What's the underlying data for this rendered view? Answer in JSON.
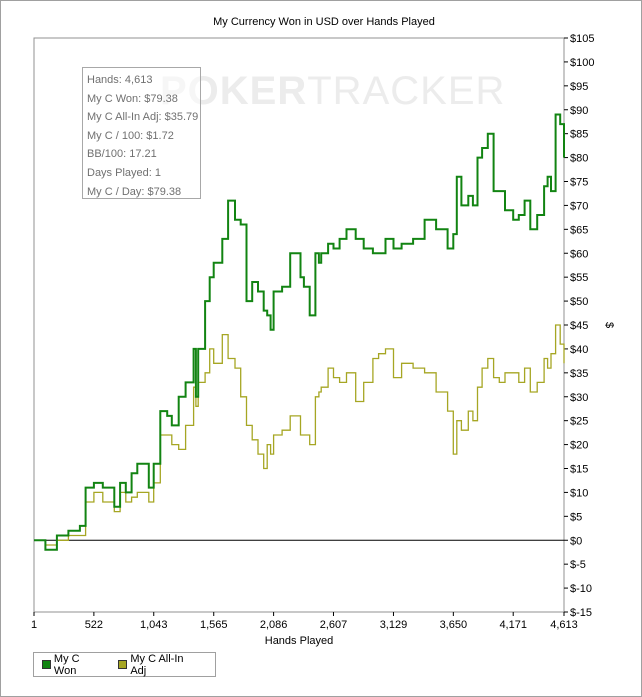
{
  "chart_data": {
    "type": "line",
    "title": "My Currency Won in USD over Hands Played",
    "xlabel": "Hands Played",
    "ylabel": "$",
    "xlim": [
      1,
      4613
    ],
    "ylim": [
      -15,
      105
    ],
    "x_ticks": [
      "1",
      "522",
      "1,043",
      "1,565",
      "2,086",
      "2,607",
      "3,129",
      "3,650",
      "4,171",
      "4,613"
    ],
    "x_tick_values": [
      1,
      522,
      1043,
      1565,
      2086,
      2607,
      3129,
      3650,
      4171,
      4613
    ],
    "y_ticks": [
      "$105",
      "$100",
      "$95",
      "$90",
      "$85",
      "$80",
      "$75",
      "$70",
      "$65",
      "$60",
      "$55",
      "$50",
      "$45",
      "$40",
      "$35",
      "$30",
      "$25",
      "$20",
      "$15",
      "$10",
      "$5",
      "$0",
      "$-5",
      "$-10",
      "$-15"
    ],
    "y_tick_values": [
      105,
      100,
      95,
      90,
      85,
      80,
      75,
      70,
      65,
      60,
      55,
      50,
      45,
      40,
      35,
      30,
      25,
      20,
      15,
      10,
      5,
      0,
      -5,
      -10,
      -15
    ],
    "legend_position": "bottom-left",
    "watermark": "POKERTRACKER",
    "series": [
      {
        "name": "My C Won",
        "color": "#128412",
        "x": [
          1,
          100,
          200,
          300,
          400,
          450,
          522,
          600,
          700,
          750,
          800,
          850,
          900,
          1000,
          1043,
          1100,
          1160,
          1200,
          1260,
          1320,
          1390,
          1410,
          1430,
          1490,
          1530,
          1565,
          1640,
          1690,
          1750,
          1800,
          1850,
          1900,
          1950,
          2000,
          2030,
          2060,
          2086,
          2160,
          2230,
          2320,
          2350,
          2400,
          2450,
          2480,
          2500,
          2560,
          2607,
          2660,
          2720,
          2800,
          2870,
          2950,
          3000,
          3060,
          3129,
          3200,
          3300,
          3400,
          3500,
          3600,
          3650,
          3680,
          3720,
          3780,
          3820,
          3860,
          3900,
          3950,
          4000,
          4050,
          4100,
          4171,
          4220,
          4270,
          4320,
          4380,
          4440,
          4470,
          4500,
          4540,
          4580,
          4613
        ],
        "values": [
          0,
          -2,
          1,
          2,
          3,
          11,
          12,
          11,
          7,
          12,
          10,
          14,
          16,
          11,
          16,
          27,
          26,
          24,
          30,
          33,
          40,
          30,
          40,
          50,
          55,
          58,
          63,
          71,
          67,
          66,
          50,
          54,
          52,
          48,
          47,
          44,
          52,
          53,
          60,
          55,
          53,
          47,
          60,
          58,
          60,
          62,
          61,
          63,
          65,
          63,
          61,
          60,
          60,
          63,
          61,
          62,
          63,
          67,
          65,
          61,
          64,
          76,
          70,
          72,
          70,
          80,
          82,
          85,
          73,
          73,
          69,
          67,
          68,
          71,
          65,
          68,
          74,
          76,
          73,
          89,
          87,
          80
        ]
      },
      {
        "name": "My C All-In Adj",
        "color": "#a6a623",
        "x": [
          1,
          100,
          200,
          300,
          400,
          450,
          522,
          600,
          700,
          750,
          800,
          850,
          900,
          1000,
          1043,
          1100,
          1160,
          1200,
          1260,
          1320,
          1390,
          1410,
          1430,
          1490,
          1530,
          1565,
          1640,
          1690,
          1750,
          1800,
          1850,
          1900,
          1950,
          2000,
          2030,
          2060,
          2086,
          2160,
          2230,
          2320,
          2350,
          2400,
          2450,
          2480,
          2500,
          2560,
          2607,
          2660,
          2720,
          2800,
          2870,
          2950,
          3000,
          3060,
          3129,
          3200,
          3300,
          3400,
          3500,
          3600,
          3650,
          3680,
          3720,
          3780,
          3820,
          3860,
          3900,
          3950,
          4000,
          4050,
          4100,
          4171,
          4220,
          4270,
          4320,
          4380,
          4440,
          4470,
          4500,
          4540,
          4580,
          4613
        ],
        "values": [
          0,
          -1,
          0,
          1,
          1,
          8,
          10,
          8,
          6,
          10,
          8,
          9,
          10,
          8,
          12,
          22,
          22,
          20,
          19,
          24,
          32,
          28,
          33,
          35,
          40,
          37,
          43,
          38,
          36,
          30,
          24,
          21,
          18,
          15,
          20,
          18,
          22,
          23,
          26,
          22,
          22,
          20,
          30,
          31,
          32,
          36,
          34,
          33,
          35,
          29,
          33,
          38,
          39,
          40,
          34,
          37,
          36,
          35,
          31,
          27,
          18,
          25,
          23,
          27,
          25,
          32,
          36,
          38,
          34,
          33,
          35,
          35,
          33,
          36,
          31,
          33,
          38,
          36,
          39,
          45,
          41,
          37
        ]
      }
    ]
  },
  "stats": {
    "hands": "Hands: 4,613",
    "won": "My C Won: $79.38",
    "allin": "My C All-In Adj: $35.79",
    "per100": "My C / 100: $1.72",
    "bb100": "BB/100: 17.21",
    "days": "Days Played: 1",
    "perday": "My C / Day: $79.38"
  },
  "legend": {
    "won_label": "My C Won",
    "allin_label": "My C All-In Adj",
    "won_color": "#128412",
    "allin_color": "#a6a623"
  }
}
